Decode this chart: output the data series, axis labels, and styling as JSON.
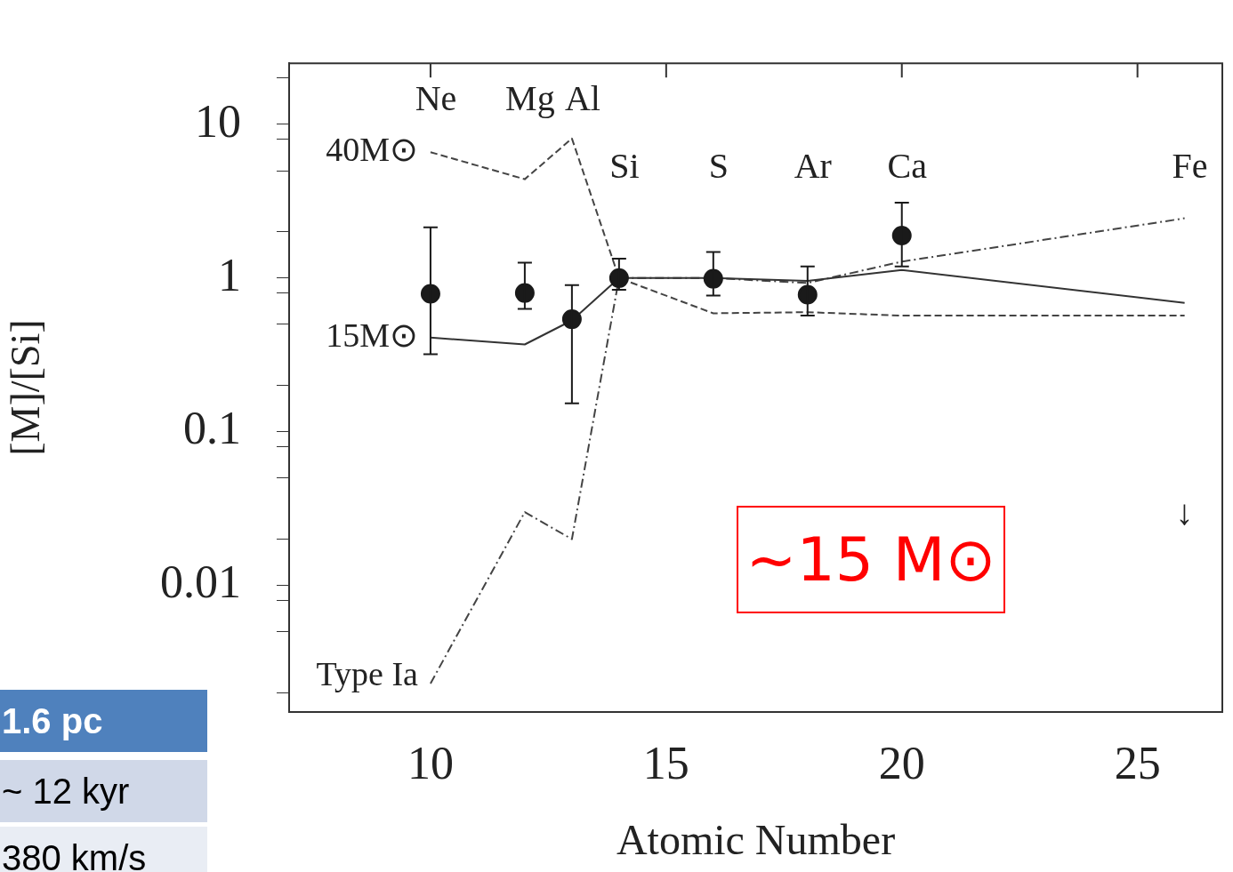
{
  "chart_data": {
    "type": "scatter",
    "xlabel": "Atomic Number",
    "ylabel": "[M]/[Si]",
    "xlim": [
      7,
      26.8
    ],
    "xticks": [
      10,
      15,
      20,
      25
    ],
    "ylim": [
      0.0015,
      25
    ],
    "log": "y",
    "yticks": [
      {
        "value": 0.002,
        "label": null
      },
      {
        "value": 0.005,
        "label": null
      },
      {
        "value": 0.008,
        "label": null
      },
      0.01,
      {
        "value": 0.02,
        "label": null
      },
      {
        "value": 0.05,
        "label": null
      },
      {
        "value": 0.08,
        "label": null
      },
      0.1,
      {
        "value": 0.2,
        "label": null
      },
      {
        "value": 0.5,
        "label": null
      },
      {
        "value": 0.8,
        "label": null
      },
      1,
      {
        "value": 2,
        "label": null
      },
      {
        "value": 5,
        "label": null
      },
      {
        "value": 8,
        "label": null
      },
      10,
      {
        "value": 20,
        "label": null
      }
    ],
    "grid": false,
    "legend": false,
    "series": [
      {
        "color": "#1a1a1a",
        "marker": "circle",
        "x": [
          10,
          12,
          13,
          14,
          16,
          18,
          20
        ],
        "values": [
          0.79,
          0.8,
          0.54,
          1.0,
          0.99,
          0.78,
          1.89
        ],
        "errors": [
          [
            0.32,
            2.14
          ],
          [
            0.63,
            1.26
          ],
          [
            0.153,
            0.9
          ],
          [
            0.84,
            1.34
          ],
          [
            0.77,
            1.48
          ],
          [
            0.57,
            1.19
          ],
          [
            1.19,
            3.1
          ]
        ]
      },
      {
        "type": "line",
        "name": "40M⊙",
        "color": "#444444",
        "marker": "none",
        "line_style": "dashed",
        "x": [
          10,
          12,
          13,
          14,
          16,
          18,
          20,
          26
        ],
        "values": [
          6.6,
          4.4,
          8.1,
          1.0,
          0.59,
          0.6,
          0.57,
          0.57
        ]
      },
      {
        "type": "line",
        "name": "15M⊙",
        "color": "#333333",
        "marker": "none",
        "line_style": "solid",
        "x": [
          10,
          12,
          13,
          14,
          16,
          18,
          20,
          26
        ],
        "values": [
          0.41,
          0.37,
          0.53,
          1.0,
          1.0,
          0.96,
          1.13,
          0.69
        ]
      },
      {
        "type": "line",
        "name": "Type Ia",
        "color": "#444444",
        "marker": "none",
        "line_style": "dotted",
        "x": [
          10,
          12,
          13,
          14,
          16,
          18,
          20,
          26
        ],
        "values": [
          0.0023,
          0.03,
          0.02,
          1.0,
          1.0,
          0.93,
          1.28,
          2.45
        ]
      }
    ],
    "annotations": [
      "~15 M⊙",
      "1.6 pc",
      "~ 12 kyr",
      "380 km/s",
      "Ne",
      "Mg",
      "Al",
      "Si",
      "S",
      "Ar",
      "Ca",
      "Fe",
      "↓"
    ]
  }
}
